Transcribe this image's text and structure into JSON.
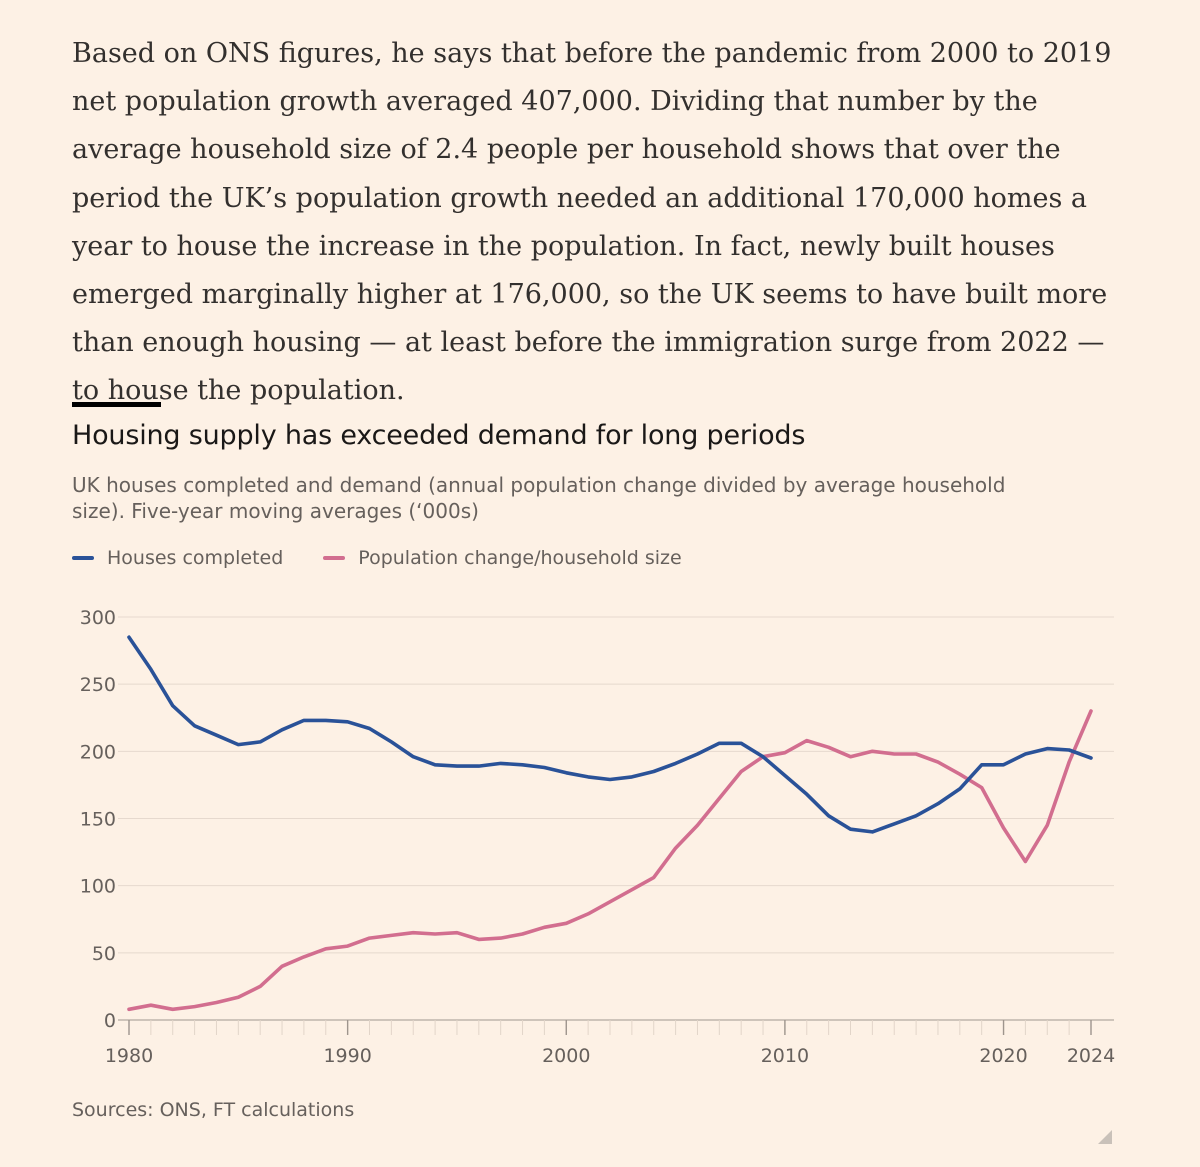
{
  "article": {
    "paragraph": "Based on ONS figures, he says that before the pandemic from 2000 to 2019 net population growth averaged 407,000. Dividing that number by the average household size of 2.4 people per household shows that over the period the UK’s population growth needed an additional 170,000 homes a year to house the increase in the population. In fact, newly built houses emerged marginally higher at 176,000, so the UK seems to have built more than enough housing — at least before the immigration surge from 2022 — to house the population."
  },
  "chart_data": {
    "type": "line",
    "title": "Housing supply has exceeded demand for long periods",
    "subtitle": "UK houses completed and demand (annual population change divided by average household size). Five-year moving averages (‘000s)",
    "xlabel": "",
    "ylabel": "",
    "xlim": [
      1980,
      2024
    ],
    "ylim": [
      0,
      300
    ],
    "yticks": [
      0,
      50,
      100,
      150,
      200,
      250,
      300
    ],
    "xtick_labels": [
      {
        "value": 1980,
        "label": "1980"
      },
      {
        "value": 1990,
        "label": "1990"
      },
      {
        "value": 2000,
        "label": "2000"
      },
      {
        "value": 2010,
        "label": "2010"
      },
      {
        "value": 2020,
        "label": "2020"
      },
      {
        "value": 2024,
        "label": "2024"
      }
    ],
    "x": [
      1980,
      1981,
      1982,
      1983,
      1984,
      1985,
      1986,
      1987,
      1988,
      1989,
      1990,
      1991,
      1992,
      1993,
      1994,
      1995,
      1996,
      1997,
      1998,
      1999,
      2000,
      2001,
      2002,
      2003,
      2004,
      2005,
      2006,
      2007,
      2008,
      2009,
      2010,
      2011,
      2012,
      2013,
      2014,
      2015,
      2016,
      2017,
      2018,
      2019,
      2020,
      2021,
      2022,
      2023,
      2024
    ],
    "series": [
      {
        "name": "Houses completed",
        "color": "#2a5298",
        "values": [
          285,
          261,
          234,
          219,
          212,
          205,
          207,
          216,
          223,
          223,
          222,
          217,
          207,
          196,
          190,
          189,
          189,
          191,
          190,
          188,
          184,
          181,
          179,
          181,
          185,
          191,
          198,
          206,
          206,
          196,
          182,
          168,
          152,
          142,
          140,
          146,
          152,
          161,
          172,
          190,
          190,
          198,
          202,
          201,
          195
        ]
      },
      {
        "name": "Population change/household size",
        "color": "#d26e8f",
        "values": [
          8,
          11,
          8,
          10,
          13,
          17,
          25,
          40,
          47,
          53,
          55,
          61,
          63,
          65,
          64,
          65,
          60,
          61,
          64,
          69,
          72,
          79,
          88,
          97,
          106,
          128,
          145,
          165,
          185,
          196,
          199,
          208,
          203,
          196,
          200,
          198,
          198,
          192,
          183,
          173,
          143,
          118,
          145,
          192,
          230
        ]
      }
    ],
    "legend": [
      "Houses completed",
      "Population change/household size"
    ],
    "source": "Sources: ONS, FT calculations"
  }
}
